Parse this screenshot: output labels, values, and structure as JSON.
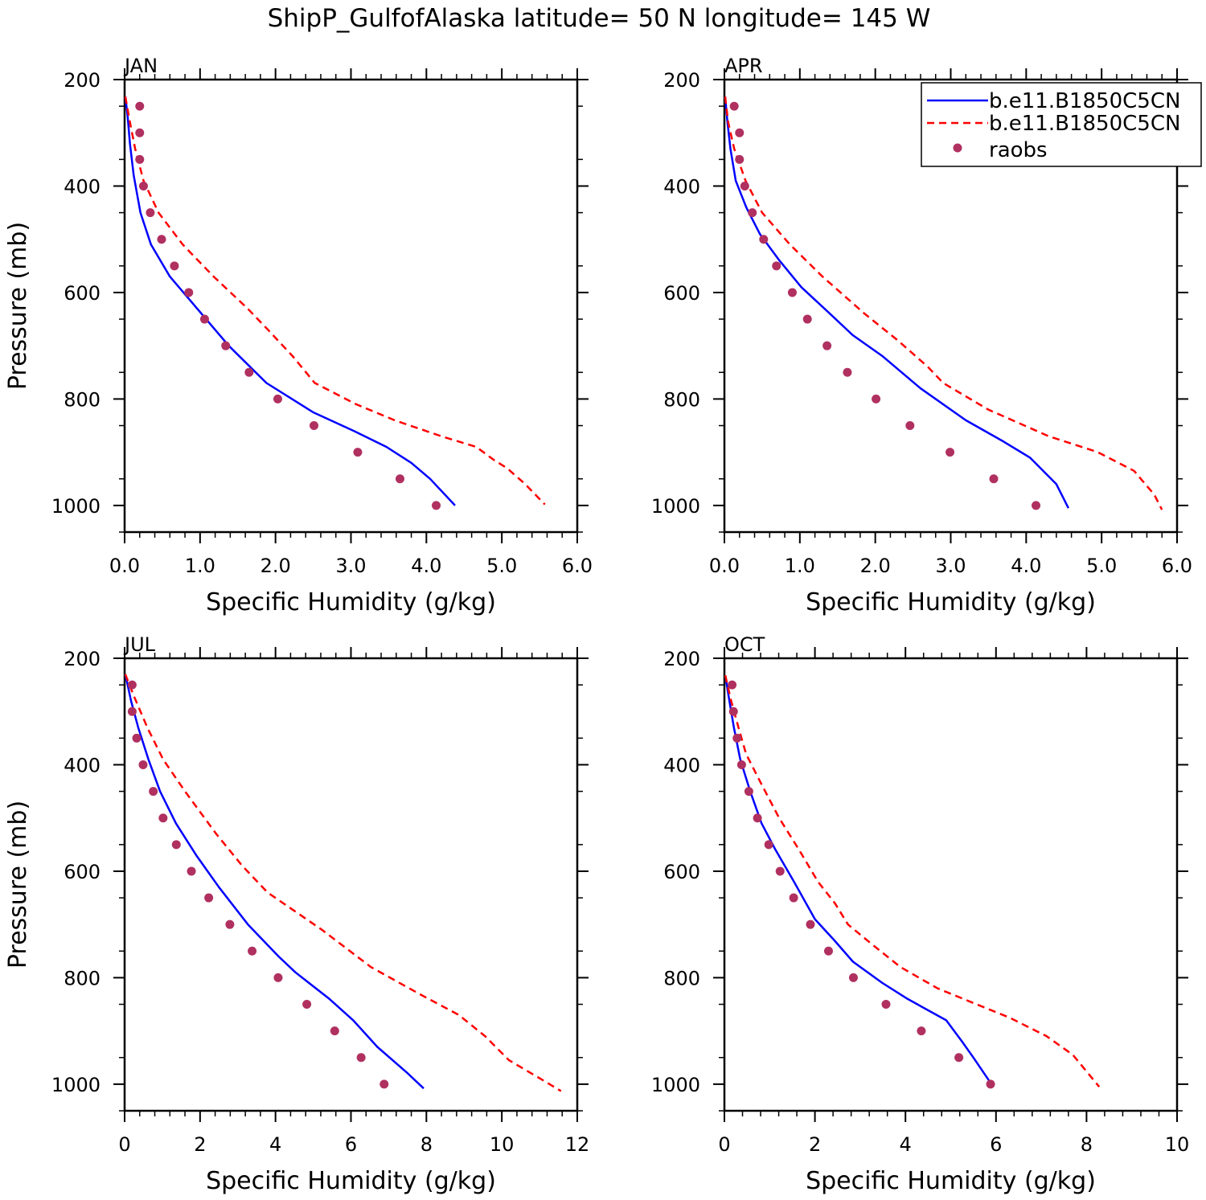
{
  "title": "ShipP_GulfofAlaska  latitude= 50 N longitude= 145 W",
  "colors": {
    "model1": "#0000ff",
    "model2": "#ff0000",
    "obs": "#b03060",
    "axis": "#000000"
  },
  "legend": {
    "placement": "top-right of APR panel",
    "entries": [
      {
        "label": "b.e11.B1850C5CN",
        "style": "solid",
        "color": "#0000ff"
      },
      {
        "label": "b.e11.B1850C5CN",
        "style": "dashed",
        "color": "#ff0000"
      },
      {
        "label": "raobs",
        "style": "marker",
        "color": "#b03060"
      }
    ]
  },
  "chart_data": [
    {
      "type": "line",
      "panel": "JAN",
      "xlabel": "Specific Humidity (g/kg)",
      "ylabel": "Pressure (mb)",
      "xlim": [
        0,
        6
      ],
      "ylim": [
        200,
        1050
      ],
      "y_inverted": true,
      "xticks": [
        0,
        1,
        2,
        3,
        4,
        5,
        6
      ],
      "xtick_labels": [
        "0.0",
        "1.0",
        "2.0",
        "3.0",
        "4.0",
        "5.0",
        "6.0"
      ],
      "yticks": [
        200,
        400,
        600,
        800,
        1000
      ],
      "ytick_labels": [
        "200",
        "400",
        "600",
        "800",
        "1000"
      ],
      "series": [
        {
          "style": "solid",
          "color": "#0000ff",
          "points": [
            [
              0.01,
              232
            ],
            [
              0.04,
              270
            ],
            [
              0.07,
              320
            ],
            [
              0.12,
              380
            ],
            [
              0.21,
              450
            ],
            [
              0.35,
              510
            ],
            [
              0.6,
              570
            ],
            [
              0.96,
              630
            ],
            [
              1.38,
              700
            ],
            [
              1.88,
              770
            ],
            [
              2.5,
              825
            ],
            [
              3.04,
              860
            ],
            [
              3.47,
              890
            ],
            [
              3.8,
              920
            ],
            [
              4.05,
              950
            ],
            [
              4.38,
              1000
            ]
          ]
        },
        {
          "style": "dashed",
          "color": "#ff0000",
          "points": [
            [
              0.01,
              232
            ],
            [
              0.07,
              280
            ],
            [
              0.14,
              330
            ],
            [
              0.25,
              390
            ],
            [
              0.45,
              450
            ],
            [
              0.77,
              510
            ],
            [
              1.18,
              570
            ],
            [
              1.63,
              630
            ],
            [
              1.9,
              670
            ],
            [
              2.23,
              720
            ],
            [
              2.52,
              770
            ],
            [
              3.07,
              810
            ],
            [
              3.58,
              840
            ],
            [
              4.2,
              870
            ],
            [
              4.66,
              890
            ],
            [
              4.9,
              915
            ],
            [
              5.07,
              930
            ],
            [
              5.31,
              960
            ],
            [
              5.57,
              998
            ]
          ]
        },
        {
          "style": "marker",
          "color": "#b03060",
          "points": [
            [
              0.2,
              250
            ],
            [
              0.2,
              300
            ],
            [
              0.2,
              350
            ],
            [
              0.25,
              400
            ],
            [
              0.34,
              450
            ],
            [
              0.49,
              500
            ],
            [
              0.66,
              550
            ],
            [
              0.85,
              600
            ],
            [
              1.06,
              650
            ],
            [
              1.34,
              700
            ],
            [
              1.65,
              750
            ],
            [
              2.03,
              800
            ],
            [
              2.51,
              850
            ],
            [
              3.09,
              900
            ],
            [
              3.65,
              950
            ],
            [
              4.13,
              1000
            ]
          ]
        }
      ]
    },
    {
      "type": "line",
      "panel": "APR",
      "xlabel": "Specific Humidity (g/kg)",
      "ylabel": "",
      "xlim": [
        0,
        6
      ],
      "ylim": [
        200,
        1050
      ],
      "y_inverted": true,
      "xticks": [
        0,
        1,
        2,
        3,
        4,
        5,
        6
      ],
      "xtick_labels": [
        "0.0",
        "1.0",
        "2.0",
        "3.0",
        "4.0",
        "5.0",
        "6.0"
      ],
      "yticks": [
        200,
        400,
        600,
        800,
        1000
      ],
      "ytick_labels": [
        "200",
        "400",
        "600",
        "800",
        "1000"
      ],
      "series": [
        {
          "style": "solid",
          "color": "#0000ff",
          "points": [
            [
              0.01,
              232
            ],
            [
              0.04,
              280
            ],
            [
              0.08,
              330
            ],
            [
              0.15,
              390
            ],
            [
              0.29,
              440
            ],
            [
              0.47,
              490
            ],
            [
              0.73,
              540
            ],
            [
              1.02,
              590
            ],
            [
              1.4,
              640
            ],
            [
              1.7,
              680
            ],
            [
              2.1,
              720
            ],
            [
              2.6,
              780
            ],
            [
              3.2,
              840
            ],
            [
              3.7,
              880
            ],
            [
              4.05,
              910
            ],
            [
              4.4,
              960
            ],
            [
              4.56,
              1005
            ]
          ]
        },
        {
          "style": "dashed",
          "color": "#ff0000",
          "points": [
            [
              0.01,
              232
            ],
            [
              0.05,
              280
            ],
            [
              0.13,
              330
            ],
            [
              0.28,
              390
            ],
            [
              0.5,
              450
            ],
            [
              0.87,
              510
            ],
            [
              1.3,
              570
            ],
            [
              1.86,
              640
            ],
            [
              2.3,
              690
            ],
            [
              2.7,
              740
            ],
            [
              2.9,
              770
            ],
            [
              3.5,
              820
            ],
            [
              4.3,
              870
            ],
            [
              4.95,
              900
            ],
            [
              5.43,
              935
            ],
            [
              5.7,
              980
            ],
            [
              5.8,
              1008
            ]
          ]
        },
        {
          "style": "marker",
          "color": "#b03060",
          "points": [
            [
              0.13,
              250
            ],
            [
              0.2,
              300
            ],
            [
              0.2,
              350
            ],
            [
              0.27,
              400
            ],
            [
              0.37,
              450
            ],
            [
              0.52,
              500
            ],
            [
              0.69,
              550
            ],
            [
              0.9,
              600
            ],
            [
              1.1,
              650
            ],
            [
              1.36,
              700
            ],
            [
              1.63,
              750
            ],
            [
              2.01,
              800
            ],
            [
              2.46,
              850
            ],
            [
              2.99,
              900
            ],
            [
              3.57,
              950
            ],
            [
              4.13,
              1000
            ]
          ]
        }
      ]
    },
    {
      "type": "line",
      "panel": "JUL",
      "xlabel": "Specific Humidity (g/kg)",
      "ylabel": "Pressure (mb)",
      "xlim": [
        0,
        12
      ],
      "ylim": [
        200,
        1050
      ],
      "y_inverted": true,
      "xticks": [
        0,
        2,
        4,
        6,
        8,
        10,
        12
      ],
      "xtick_labels": [
        "0",
        "2",
        "4",
        "6",
        "8",
        "10",
        "12"
      ],
      "yticks": [
        200,
        400,
        600,
        800,
        1000
      ],
      "ytick_labels": [
        "200",
        "400",
        "600",
        "800",
        "1000"
      ],
      "series": [
        {
          "style": "solid",
          "color": "#0000ff",
          "points": [
            [
              0.02,
              230
            ],
            [
              0.17,
              280
            ],
            [
              0.36,
              330
            ],
            [
              0.63,
              390
            ],
            [
              0.94,
              450
            ],
            [
              1.36,
              510
            ],
            [
              1.9,
              570
            ],
            [
              2.5,
              630
            ],
            [
              3.27,
              700
            ],
            [
              4.08,
              760
            ],
            [
              4.53,
              790
            ],
            [
              5.43,
              840
            ],
            [
              6.06,
              880
            ],
            [
              6.7,
              930
            ],
            [
              7.51,
              980
            ],
            [
              7.93,
              1008
            ]
          ]
        },
        {
          "style": "dashed",
          "color": "#ff0000",
          "points": [
            [
              0.02,
              230
            ],
            [
              0.24,
              270
            ],
            [
              0.6,
              330
            ],
            [
              1.02,
              390
            ],
            [
              1.6,
              450
            ],
            [
              2.43,
              530
            ],
            [
              3.12,
              590
            ],
            [
              3.79,
              640
            ],
            [
              5.23,
              710
            ],
            [
              6.53,
              780
            ],
            [
              7.8,
              830
            ],
            [
              8.86,
              870
            ],
            [
              9.56,
              910
            ],
            [
              10.19,
              955
            ],
            [
              11.15,
              995
            ],
            [
              11.57,
              1013
            ]
          ]
        },
        {
          "style": "marker",
          "color": "#b03060",
          "points": [
            [
              0.2,
              250
            ],
            [
              0.2,
              300
            ],
            [
              0.32,
              350
            ],
            [
              0.49,
              400
            ],
            [
              0.76,
              450
            ],
            [
              1.02,
              500
            ],
            [
              1.37,
              550
            ],
            [
              1.77,
              600
            ],
            [
              2.23,
              650
            ],
            [
              2.79,
              700
            ],
            [
              3.38,
              750
            ],
            [
              4.07,
              800
            ],
            [
              4.83,
              850
            ],
            [
              5.57,
              900
            ],
            [
              6.27,
              950
            ],
            [
              6.88,
              1000
            ]
          ]
        }
      ]
    },
    {
      "type": "line",
      "panel": "OCT",
      "xlabel": "Specific Humidity (g/kg)",
      "ylabel": "",
      "xlim": [
        0,
        10
      ],
      "ylim": [
        200,
        1050
      ],
      "y_inverted": true,
      "xticks": [
        0,
        2,
        4,
        6,
        8,
        10
      ],
      "xtick_labels": [
        "0",
        "2",
        "4",
        "6",
        "8",
        "10"
      ],
      "yticks": [
        200,
        400,
        600,
        800,
        1000
      ],
      "ytick_labels": [
        "200",
        "400",
        "600",
        "800",
        "1000"
      ],
      "series": [
        {
          "style": "solid",
          "color": "#0000ff",
          "points": [
            [
              0.02,
              232
            ],
            [
              0.11,
              280
            ],
            [
              0.21,
              330
            ],
            [
              0.35,
              390
            ],
            [
              0.57,
              450
            ],
            [
              0.82,
              510
            ],
            [
              1.13,
              560
            ],
            [
              1.54,
              620
            ],
            [
              2.0,
              690
            ],
            [
              2.43,
              730
            ],
            [
              2.84,
              770
            ],
            [
              3.49,
              810
            ],
            [
              4.05,
              840
            ],
            [
              4.9,
              880
            ],
            [
              5.25,
              920
            ],
            [
              5.5,
              950
            ],
            [
              5.9,
              1000
            ]
          ]
        },
        {
          "style": "dashed",
          "color": "#ff0000",
          "points": [
            [
              0.02,
              232
            ],
            [
              0.15,
              280
            ],
            [
              0.31,
              330
            ],
            [
              0.48,
              380
            ],
            [
              0.84,
              440
            ],
            [
              1.21,
              500
            ],
            [
              1.65,
              560
            ],
            [
              2.07,
              620
            ],
            [
              2.44,
              660
            ],
            [
              2.73,
              700
            ],
            [
              3.3,
              740
            ],
            [
              3.89,
              780
            ],
            [
              4.71,
              820
            ],
            [
              5.57,
              850
            ],
            [
              6.3,
              875
            ],
            [
              7.12,
              910
            ],
            [
              7.7,
              945
            ],
            [
              8.28,
              1005
            ]
          ]
        },
        {
          "style": "marker",
          "color": "#b03060",
          "points": [
            [
              0.17,
              250
            ],
            [
              0.2,
              300
            ],
            [
              0.28,
              350
            ],
            [
              0.38,
              400
            ],
            [
              0.54,
              450
            ],
            [
              0.73,
              500
            ],
            [
              0.98,
              550
            ],
            [
              1.23,
              600
            ],
            [
              1.53,
              650
            ],
            [
              1.9,
              700
            ],
            [
              2.3,
              750
            ],
            [
              2.85,
              800
            ],
            [
              3.57,
              850
            ],
            [
              4.35,
              900
            ],
            [
              5.18,
              950
            ],
            [
              5.88,
              1000
            ]
          ]
        }
      ]
    }
  ]
}
